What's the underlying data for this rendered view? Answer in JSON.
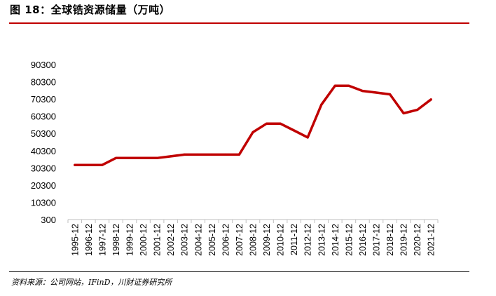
{
  "figure": {
    "title": "图 18：全球锆资源储量（万吨）",
    "source": "资料来源：公司网站，IFinD，川财证券研究所"
  },
  "colors": {
    "line": "#c00000",
    "rule": "#c00000",
    "axis": "#bfbfbf"
  },
  "chart_data": {
    "type": "line",
    "title": "",
    "xlabel": "",
    "ylabel": "",
    "grid": false,
    "legend": "none",
    "ylim": [
      300,
      90300
    ],
    "yticks": [
      300,
      10300,
      20300,
      30300,
      40300,
      50300,
      60300,
      70300,
      80300,
      90300
    ],
    "categories": [
      "1995-12",
      "1996-12",
      "1997-12",
      "1998-12",
      "1999-12",
      "2000-12",
      "2001-12",
      "2002-12",
      "2003-12",
      "2004-12",
      "2005-12",
      "2006-12",
      "2007-12",
      "2008-12",
      "2009-12",
      "2010-12",
      "2011-12",
      "2012-12",
      "2013-12",
      "2014-12",
      "2015-12",
      "2016-12",
      "2017-12",
      "2018-12",
      "2019-12",
      "2020-12",
      "2021-12"
    ],
    "series": [
      {
        "values": [
          32000,
          32000,
          32000,
          36000,
          36000,
          36000,
          36000,
          37000,
          38000,
          38000,
          38000,
          38000,
          38000,
          51000,
          56000,
          56000,
          52000,
          48000,
          67000,
          78000,
          78000,
          75000,
          74000,
          73000,
          62000,
          64000,
          70000
        ]
      }
    ]
  }
}
